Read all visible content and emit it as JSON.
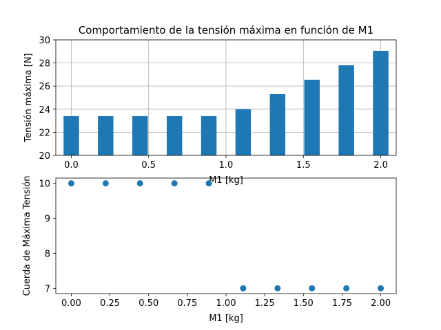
{
  "chart_data": [
    {
      "type": "bar",
      "title": "Comportamiento de la tensión máxima en función de M1",
      "xlabel": "M1 [kg]",
      "ylabel": "Tensión máxima [N]",
      "x": [
        0.0,
        0.2222,
        0.4444,
        0.6667,
        0.8889,
        1.1111,
        1.3333,
        1.5556,
        1.7778,
        2.0
      ],
      "values": [
        23.4,
        23.4,
        23.4,
        23.4,
        23.4,
        24.0,
        25.3,
        26.55,
        27.8,
        29.05
      ],
      "bar_width": 0.1,
      "xlim": [
        -0.1,
        2.1
      ],
      "ylim": [
        20,
        30
      ],
      "xticks": [
        0.0,
        0.5,
        1.0,
        1.5,
        2.0
      ],
      "xtick_labels": [
        "0.0",
        "0.5",
        "1.0",
        "1.5",
        "2.0"
      ],
      "yticks": [
        20,
        22,
        24,
        26,
        28,
        30
      ],
      "ytick_labels": [
        "20",
        "22",
        "24",
        "26",
        "28",
        "30"
      ],
      "grid": true,
      "color": "#1f77b4"
    },
    {
      "type": "scatter",
      "xlabel": "M1 [kg]",
      "ylabel": "Cuerda de Máxima Tensión",
      "x": [
        0.0,
        0.2222,
        0.4444,
        0.6667,
        0.8889,
        1.1111,
        1.3333,
        1.5556,
        1.7778,
        2.0
      ],
      "y": [
        10,
        10,
        10,
        10,
        10,
        7,
        7,
        7,
        7,
        7
      ],
      "xlim": [
        -0.1,
        2.1
      ],
      "ylim": [
        6.85,
        10.15
      ],
      "xticks": [
        0.0,
        0.25,
        0.5,
        0.75,
        1.0,
        1.25,
        1.5,
        1.75,
        2.0
      ],
      "xtick_labels": [
        "0.00",
        "0.25",
        "0.50",
        "0.75",
        "1.00",
        "1.25",
        "1.50",
        "1.75",
        "2.00"
      ],
      "yticks": [
        7,
        8,
        9,
        10
      ],
      "ytick_labels": [
        "7",
        "8",
        "9",
        "10"
      ],
      "grid": false,
      "color": "#1f77b4"
    }
  ]
}
